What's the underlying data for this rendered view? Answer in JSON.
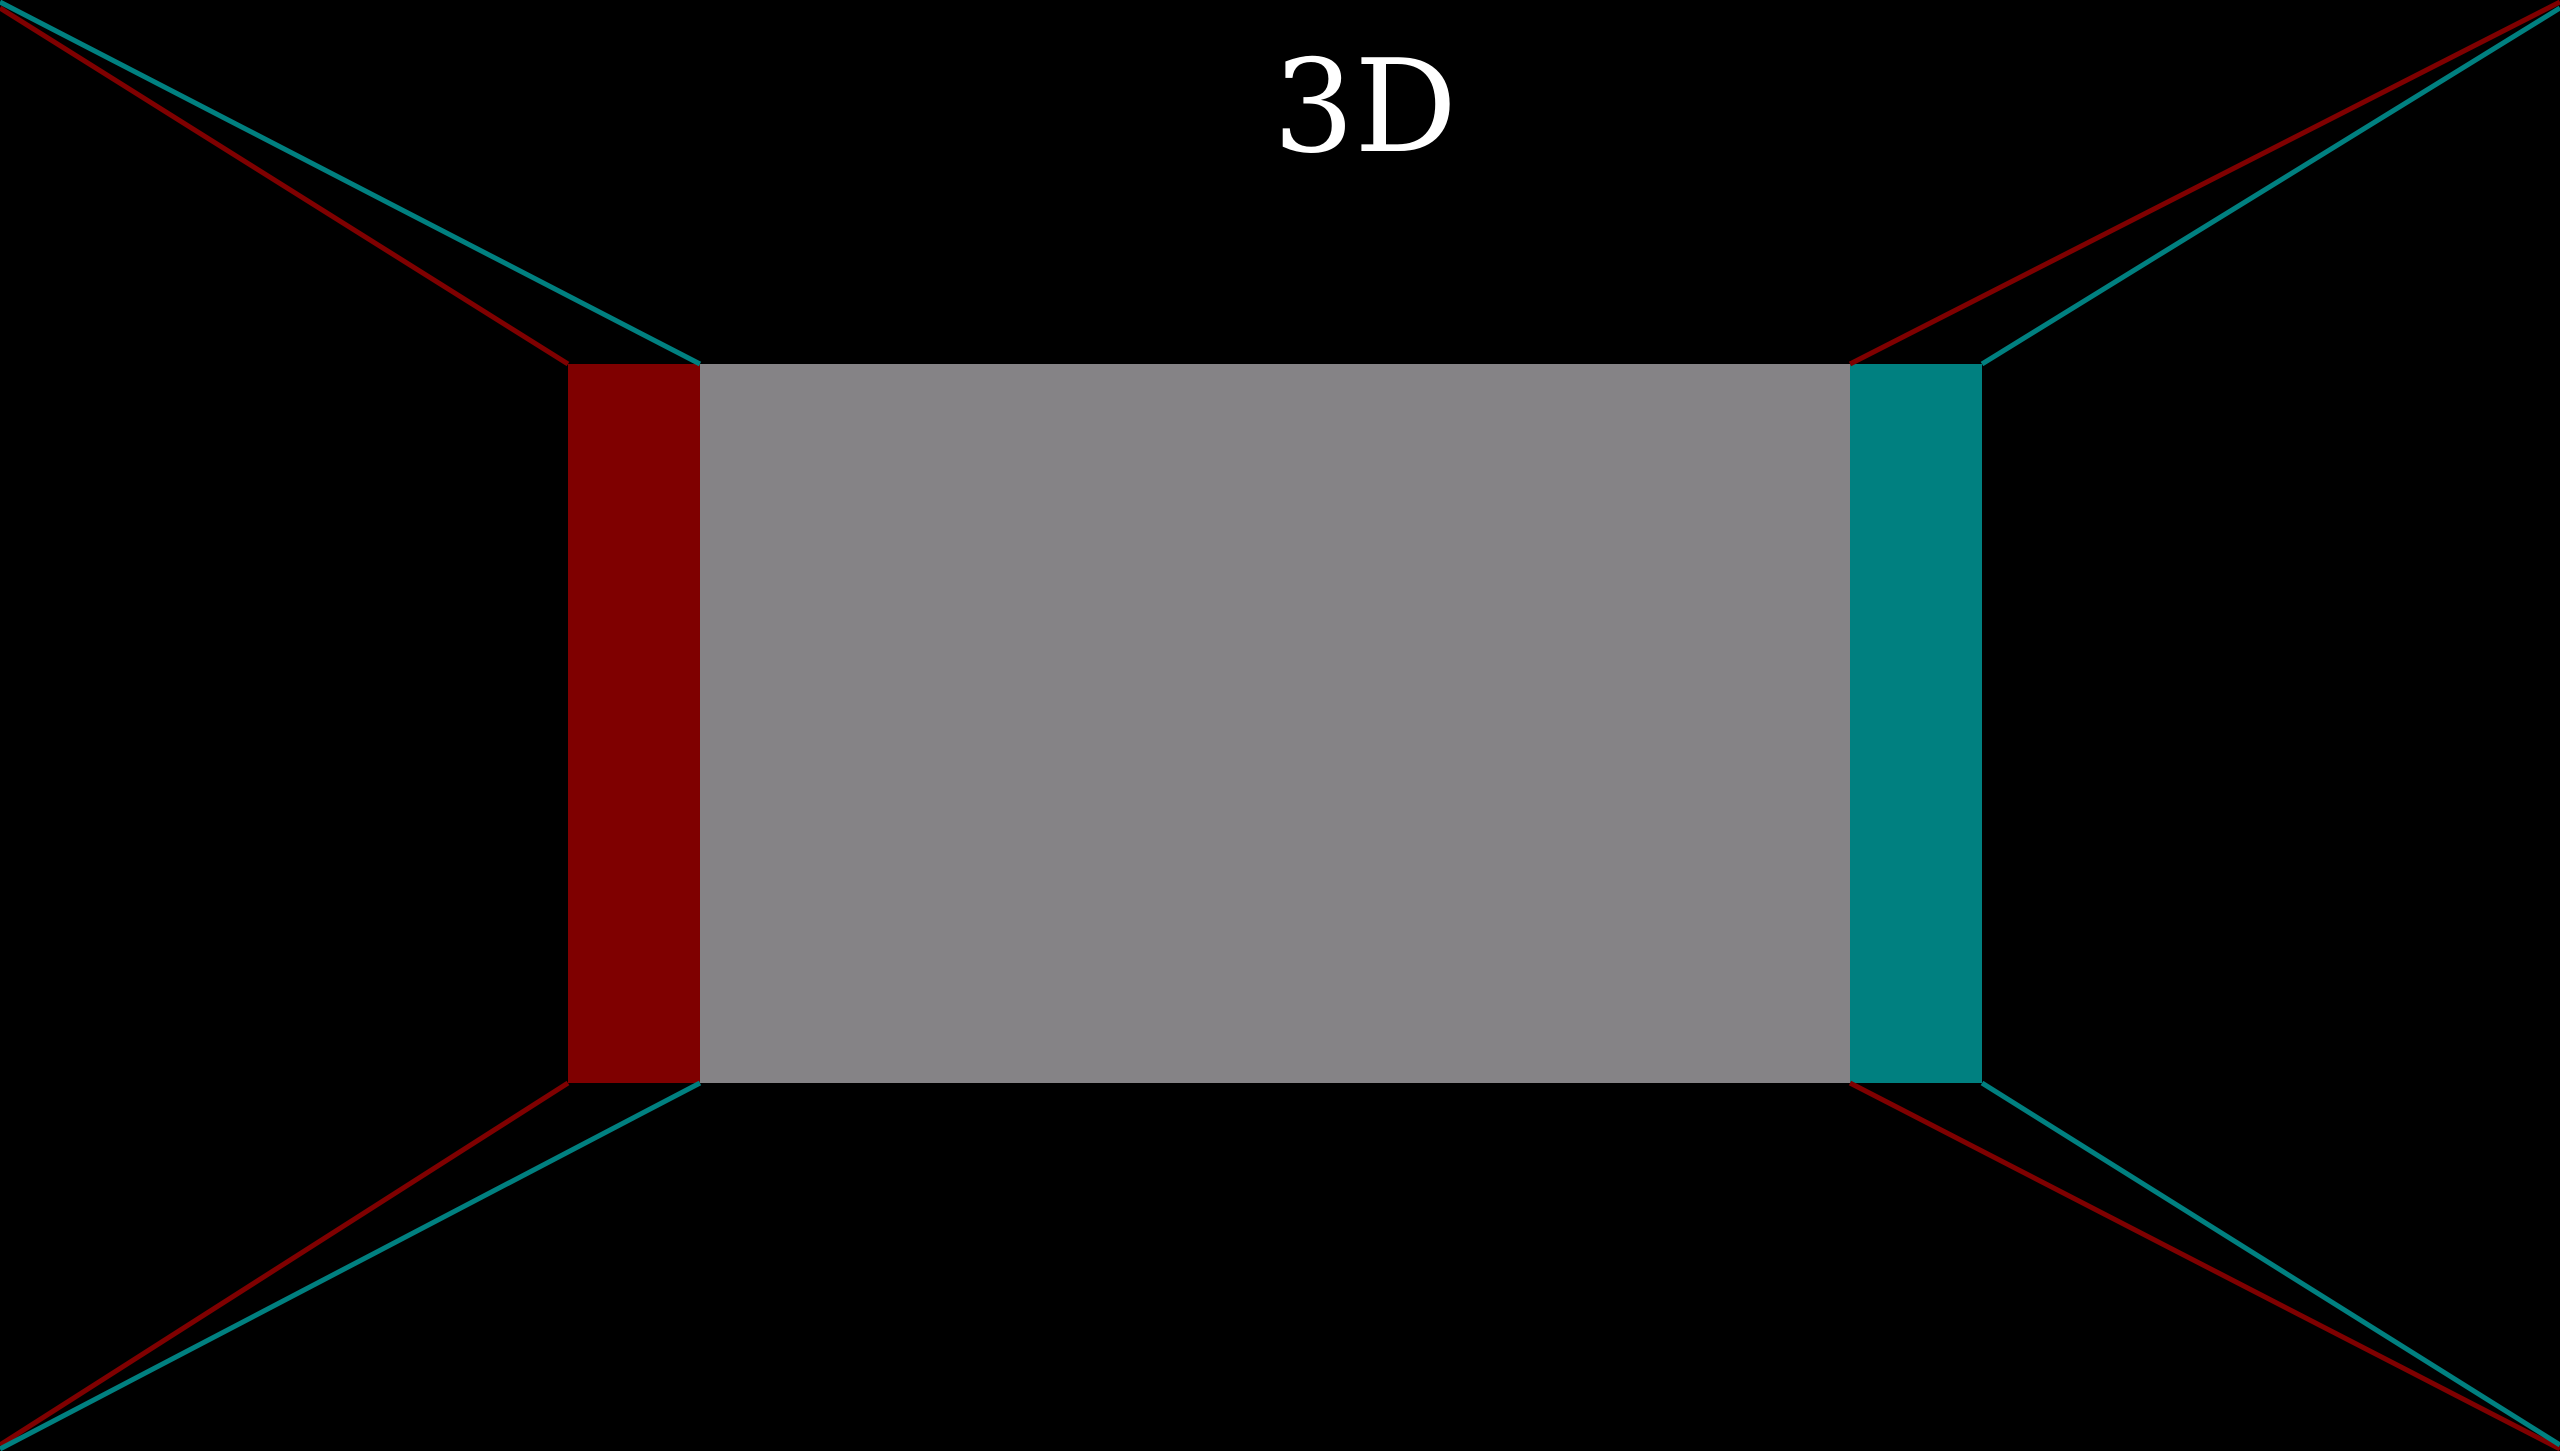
{
  "title": "3D",
  "colors": {
    "background": "#000000",
    "screen": "#858386",
    "left_eye": "#7f0000",
    "right_eye": "#008080",
    "title_text": "#ffffff"
  }
}
